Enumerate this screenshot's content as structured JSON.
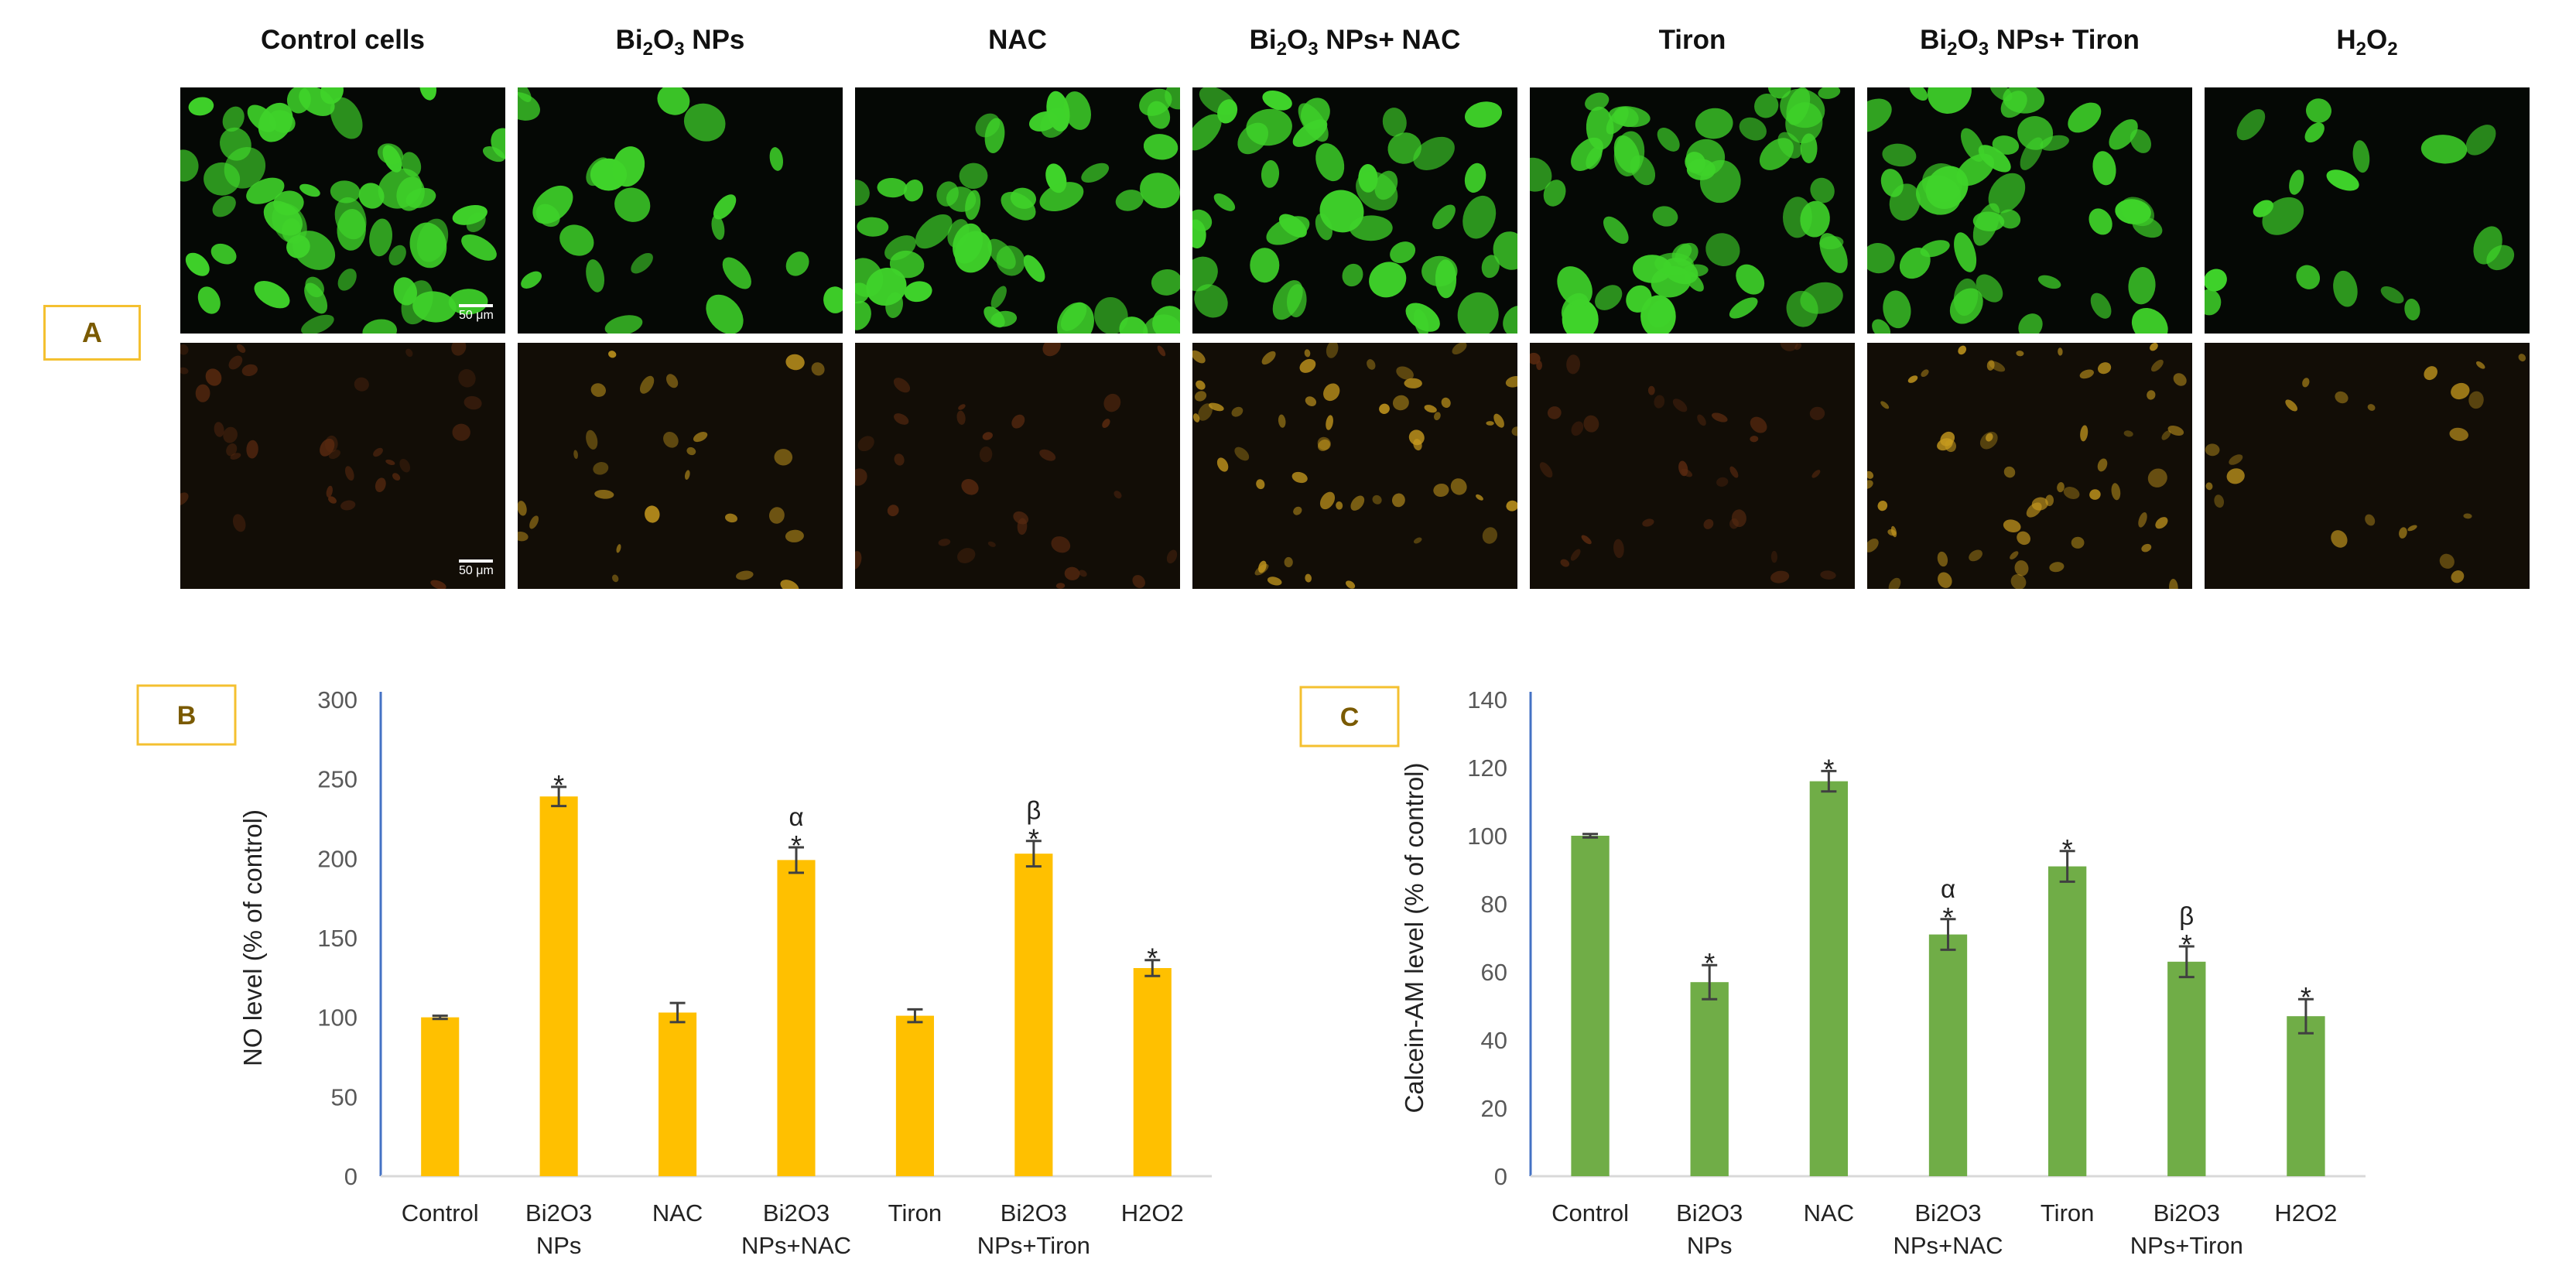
{
  "panel_a": {
    "label": "A",
    "columns": [
      {
        "title": "Control cells",
        "sub": "",
        "tail": ""
      },
      {
        "title": "Bi",
        "sub1": "2",
        "mid": "O",
        "sub2": "3",
        "tail": " NPs"
      },
      {
        "title": "NAC",
        "sub": "",
        "tail": ""
      },
      {
        "title": "Bi",
        "sub1": "2",
        "mid": "O",
        "sub2": "3",
        "tail": " NPs+ NAC"
      },
      {
        "title": "Tiron",
        "sub": "",
        "tail": ""
      },
      {
        "title": "Bi",
        "sub1": "2",
        "mid": "O",
        "sub2": "3",
        "tail": " NPs+ Tiron"
      },
      {
        "title": "H",
        "sub1": "2",
        "mid": "O",
        "sub2": "2",
        "tail": ""
      }
    ],
    "scale_bar_label": "50 μm",
    "colors": {
      "calcein": "#3fd32a",
      "no_stain": "#c79a1e",
      "background": "#050805"
    }
  },
  "chart_data": [
    {
      "panel_label": "B",
      "type": "bar",
      "categories": [
        "Control",
        "Bi2O3\nNPs",
        "NAC",
        "Bi2O3\nNPs+NAC",
        "Tiron",
        "Bi2O3\nNPs+Tiron",
        "H2O2"
      ],
      "values": [
        100,
        239,
        103,
        199,
        101,
        203,
        131
      ],
      "errors": [
        1,
        6,
        6,
        8,
        4,
        8,
        5
      ],
      "annotations": [
        "",
        "*",
        "",
        "α\n*",
        "",
        "β\n*",
        "*"
      ],
      "ylabel": "NO level (% of control)",
      "xlabel": "",
      "ylim": [
        0,
        300
      ],
      "yticks": [
        0,
        50,
        100,
        150,
        200,
        250,
        300
      ],
      "color": "#ffc000",
      "grid": false
    },
    {
      "panel_label": "C",
      "type": "bar",
      "categories": [
        "Control",
        "Bi2O3\nNPs",
        "NAC",
        "Bi2O3\nNPs+NAC",
        "Tiron",
        "Bi2O3\nNPs+Tiron",
        "H2O2"
      ],
      "values": [
        100,
        57,
        116,
        71,
        91,
        63,
        47
      ],
      "errors": [
        0.5,
        5,
        3,
        4.5,
        4.5,
        4.5,
        5
      ],
      "annotations": [
        "",
        "*",
        "*",
        "α\n*",
        "*",
        "β\n*",
        "*"
      ],
      "ylabel": "Calcein-AM level (% of control)",
      "xlabel": "",
      "ylim": [
        0,
        140
      ],
      "yticks": [
        0,
        20,
        40,
        60,
        80,
        100,
        120,
        140
      ],
      "color": "#70ad47",
      "grid": false
    }
  ]
}
